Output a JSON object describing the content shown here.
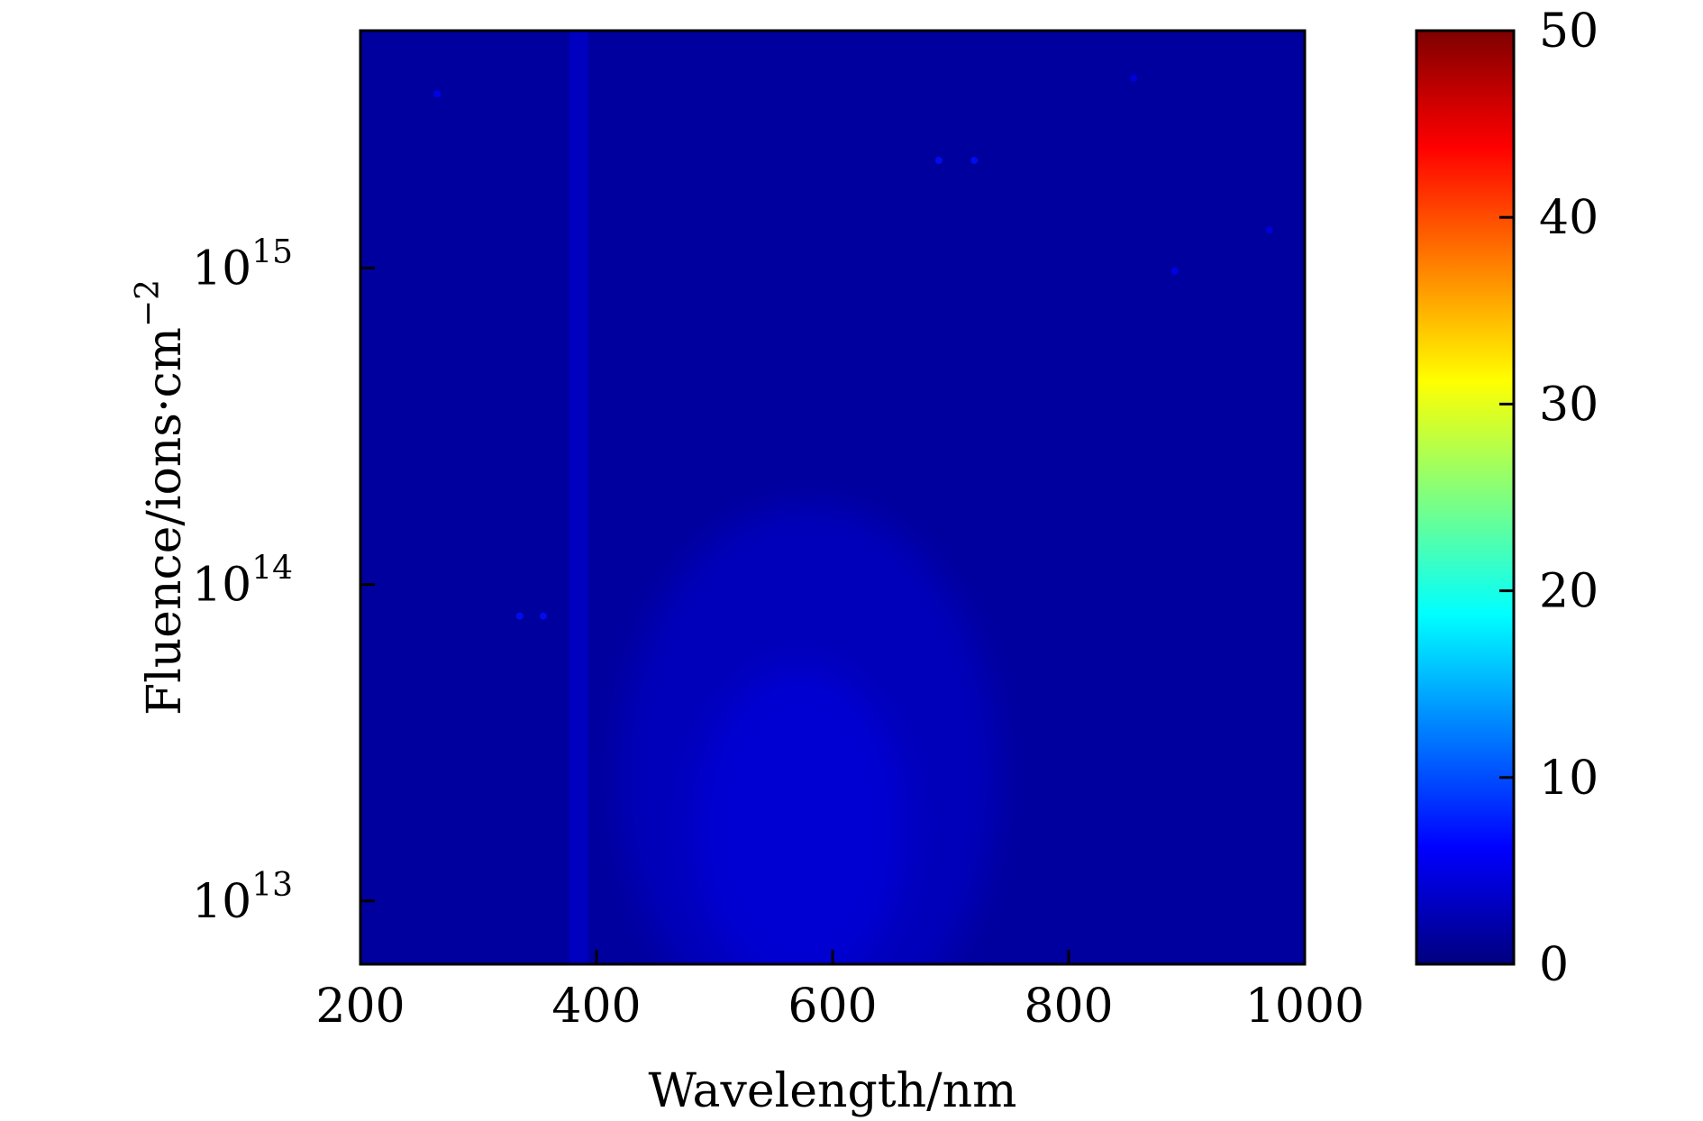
{
  "chart_data": {
    "type": "heatmap",
    "title": "",
    "xlabel": "Wavelength/nm",
    "ylabel": "Fluence/ions·cm",
    "ylabel_exponent": "−2",
    "xlim": [
      200,
      1000
    ],
    "ylim_log10": [
      12.8,
      15.75
    ],
    "yscale": "log",
    "x_ticks": [
      {
        "value": 200,
        "label": "200"
      },
      {
        "value": 400,
        "label": "400"
      },
      {
        "value": 600,
        "label": "600"
      },
      {
        "value": 800,
        "label": "800"
      },
      {
        "value": 1000,
        "label": "1000"
      }
    ],
    "y_ticks": [
      {
        "log10": 13,
        "base": "10",
        "exp": "13"
      },
      {
        "log10": 14,
        "base": "10",
        "exp": "14"
      },
      {
        "log10": 15,
        "base": "10",
        "exp": "15"
      }
    ],
    "colorbar": {
      "colormap": "jet",
      "range": [
        0,
        50
      ],
      "ticks": [
        {
          "value": 0,
          "label": "0"
        },
        {
          "value": 10,
          "label": "10"
        },
        {
          "value": 20,
          "label": "20"
        },
        {
          "value": 30,
          "label": "30"
        },
        {
          "value": 40,
          "label": "40"
        },
        {
          "value": 50,
          "label": "50"
        }
      ],
      "stops": [
        "#00007f",
        "#0000ff",
        "#007fff",
        "#00ffff",
        "#7fff7f",
        "#ffff00",
        "#ff7f00",
        "#ff0000",
        "#7f0000"
      ]
    },
    "field": {
      "baseline_value": 1.5,
      "features": [
        {
          "kind": "band",
          "x_center": 385,
          "x_halfwidth": 8,
          "value": 3.5
        },
        {
          "kind": "blob",
          "x_center": 580,
          "log10_center": 13.4,
          "value": 4.0
        }
      ],
      "speckles": [
        {
          "x": 265,
          "log10": 15.55,
          "value": 6
        },
        {
          "x": 335,
          "log10": 13.9,
          "value": 7
        },
        {
          "x": 355,
          "log10": 13.9,
          "value": 7
        },
        {
          "x": 690,
          "log10": 15.34,
          "value": 7
        },
        {
          "x": 720,
          "log10": 15.34,
          "value": 7
        },
        {
          "x": 855,
          "log10": 15.6,
          "value": 5
        },
        {
          "x": 890,
          "log10": 14.99,
          "value": 6
        },
        {
          "x": 970,
          "log10": 15.12,
          "value": 5
        }
      ]
    }
  }
}
